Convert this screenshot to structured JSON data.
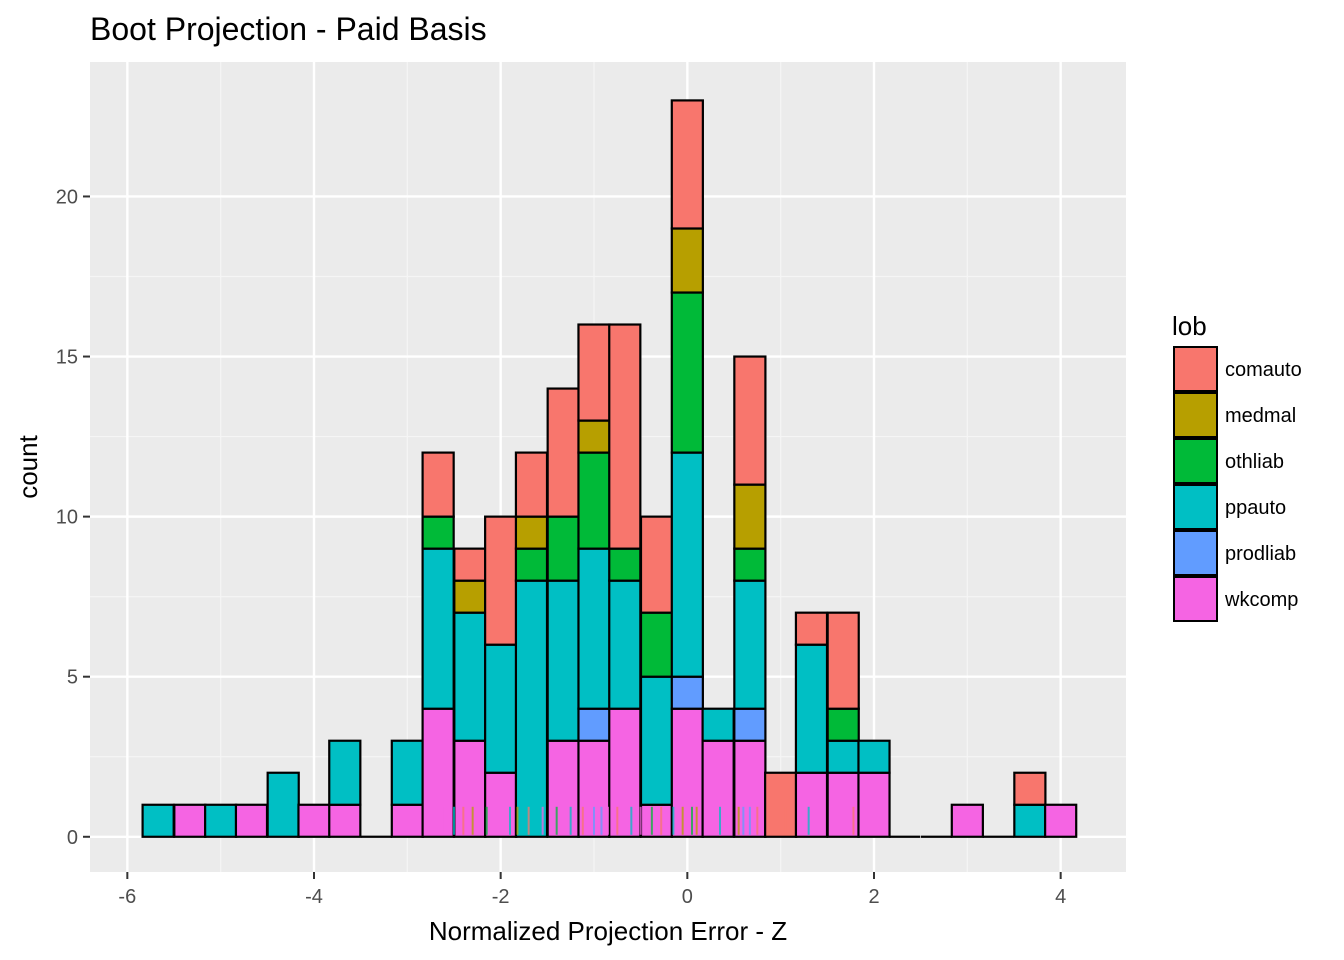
{
  "chart_data": {
    "type": "bar",
    "subtype": "stacked-histogram",
    "title": "Boot Projection - Paid Basis",
    "xlabel": "Normalized Projection Error - Z",
    "ylabel": "count",
    "xlim": [
      -6.4,
      4.7
    ],
    "ylim": [
      -1.1,
      24.2
    ],
    "x_ticks": [
      -6,
      -4,
      -2,
      0,
      2,
      4
    ],
    "y_ticks": [
      0,
      5,
      10,
      15,
      20
    ],
    "bin_width": 0.333,
    "grid": true,
    "legend": {
      "title": "lob",
      "position": "right"
    },
    "series": [
      {
        "name": "comauto",
        "color": "#F8766D"
      },
      {
        "name": "medmal",
        "color": "#B79F00"
      },
      {
        "name": "othliab",
        "color": "#00BA38"
      },
      {
        "name": "ppauto",
        "color": "#00BFC4"
      },
      {
        "name": "prodliab",
        "color": "#619CFF"
      },
      {
        "name": "wkcomp",
        "color": "#F564E3"
      }
    ],
    "bins": [
      {
        "x": -5.67,
        "counts": [
          0,
          0,
          0,
          1,
          0,
          0
        ]
      },
      {
        "x": -5.33,
        "counts": [
          0,
          0,
          0,
          0,
          0,
          1
        ]
      },
      {
        "x": -5.0,
        "counts": [
          0,
          0,
          0,
          1,
          0,
          0
        ]
      },
      {
        "x": -4.67,
        "counts": [
          0,
          0,
          0,
          0,
          0,
          1
        ]
      },
      {
        "x": -4.33,
        "counts": [
          0,
          0,
          0,
          2,
          0,
          0
        ]
      },
      {
        "x": -4.0,
        "counts": [
          0,
          0,
          0,
          0,
          0,
          1
        ]
      },
      {
        "x": -3.67,
        "counts": [
          0,
          0,
          0,
          2,
          0,
          1
        ]
      },
      {
        "x": -3.33,
        "counts": [
          0,
          0,
          0,
          0,
          0,
          0
        ]
      },
      {
        "x": -3.0,
        "counts": [
          0,
          0,
          0,
          2,
          0,
          1
        ]
      },
      {
        "x": -2.67,
        "counts": [
          2,
          0,
          1,
          5,
          0,
          4
        ]
      },
      {
        "x": -2.33,
        "counts": [
          1,
          1,
          0,
          4,
          0,
          3
        ]
      },
      {
        "x": -2.0,
        "counts": [
          4,
          0,
          0,
          4,
          0,
          2
        ]
      },
      {
        "x": -1.67,
        "counts": [
          2,
          1,
          1,
          8,
          0,
          0
        ]
      },
      {
        "x": -1.33,
        "counts": [
          4,
          0,
          2,
          5,
          0,
          3
        ]
      },
      {
        "x": -1.0,
        "counts": [
          3,
          1,
          3,
          5,
          1,
          3
        ]
      },
      {
        "x": -0.67,
        "counts": [
          7,
          0,
          1,
          4,
          0,
          4
        ]
      },
      {
        "x": -0.33,
        "counts": [
          3,
          0,
          2,
          4,
          0,
          1
        ]
      },
      {
        "x": 0.0,
        "counts": [
          4,
          2,
          5,
          7,
          1,
          4
        ]
      },
      {
        "x": 0.33,
        "counts": [
          0,
          0,
          0,
          1,
          0,
          3
        ]
      },
      {
        "x": 0.67,
        "counts": [
          4,
          2,
          1,
          4,
          1,
          3
        ]
      },
      {
        "x": 1.0,
        "counts": [
          2,
          0,
          0,
          0,
          0,
          0
        ]
      },
      {
        "x": 1.33,
        "counts": [
          1,
          0,
          0,
          4,
          0,
          2
        ]
      },
      {
        "x": 1.67,
        "counts": [
          3,
          0,
          1,
          1,
          0,
          2
        ]
      },
      {
        "x": 2.0,
        "counts": [
          0,
          0,
          0,
          1,
          0,
          2
        ]
      },
      {
        "x": 2.33,
        "counts": [
          0,
          0,
          0,
          0,
          0,
          0
        ]
      },
      {
        "x": 2.67,
        "counts": [
          0,
          0,
          0,
          0,
          0,
          0
        ]
      },
      {
        "x": 3.0,
        "counts": [
          0,
          0,
          0,
          0,
          0,
          1
        ]
      },
      {
        "x": 3.33,
        "counts": [
          0,
          0,
          0,
          0,
          0,
          0
        ]
      },
      {
        "x": 3.67,
        "counts": [
          1,
          0,
          0,
          1,
          0,
          0
        ]
      },
      {
        "x": 4.0,
        "counts": [
          0,
          0,
          0,
          0,
          0,
          1
        ]
      }
    ],
    "rug": [
      {
        "x": -2.6,
        "series": "wkcomp"
      },
      {
        "x": -2.5,
        "series": "ppauto"
      },
      {
        "x": -2.4,
        "series": "comauto"
      },
      {
        "x": -2.3,
        "series": "medmal"
      },
      {
        "x": -2.15,
        "series": "othliab"
      },
      {
        "x": -2.05,
        "series": "wkcomp"
      },
      {
        "x": -1.9,
        "series": "ppauto"
      },
      {
        "x": -1.82,
        "series": "medmal"
      },
      {
        "x": -1.7,
        "series": "comauto"
      },
      {
        "x": -1.55,
        "series": "wkcomp"
      },
      {
        "x": -1.4,
        "series": "othliab"
      },
      {
        "x": -1.25,
        "series": "ppauto"
      },
      {
        "x": -1.12,
        "series": "comauto"
      },
      {
        "x": -1.0,
        "series": "prodliab"
      },
      {
        "x": -0.92,
        "series": "prodliab"
      },
      {
        "x": -0.85,
        "series": "wkcomp"
      },
      {
        "x": -0.75,
        "series": "comauto"
      },
      {
        "x": -0.6,
        "series": "ppauto"
      },
      {
        "x": -0.5,
        "series": "wkcomp"
      },
      {
        "x": -0.38,
        "series": "othliab"
      },
      {
        "x": -0.28,
        "series": "comauto"
      },
      {
        "x": -0.15,
        "series": "ppauto"
      },
      {
        "x": -0.05,
        "series": "medmal"
      },
      {
        "x": 0.05,
        "series": "othliab"
      },
      {
        "x": 0.1,
        "series": "medmal"
      },
      {
        "x": 0.2,
        "series": "wkcomp"
      },
      {
        "x": 0.35,
        "series": "ppauto"
      },
      {
        "x": 0.55,
        "series": "medmal"
      },
      {
        "x": 0.6,
        "series": "prodliab"
      },
      {
        "x": 0.67,
        "series": "prodliab"
      },
      {
        "x": 0.75,
        "series": "comauto"
      },
      {
        "x": 1.05,
        "series": "comauto"
      },
      {
        "x": 1.3,
        "series": "ppauto"
      },
      {
        "x": 1.55,
        "series": "wkcomp"
      },
      {
        "x": 1.78,
        "series": "comauto"
      }
    ]
  }
}
